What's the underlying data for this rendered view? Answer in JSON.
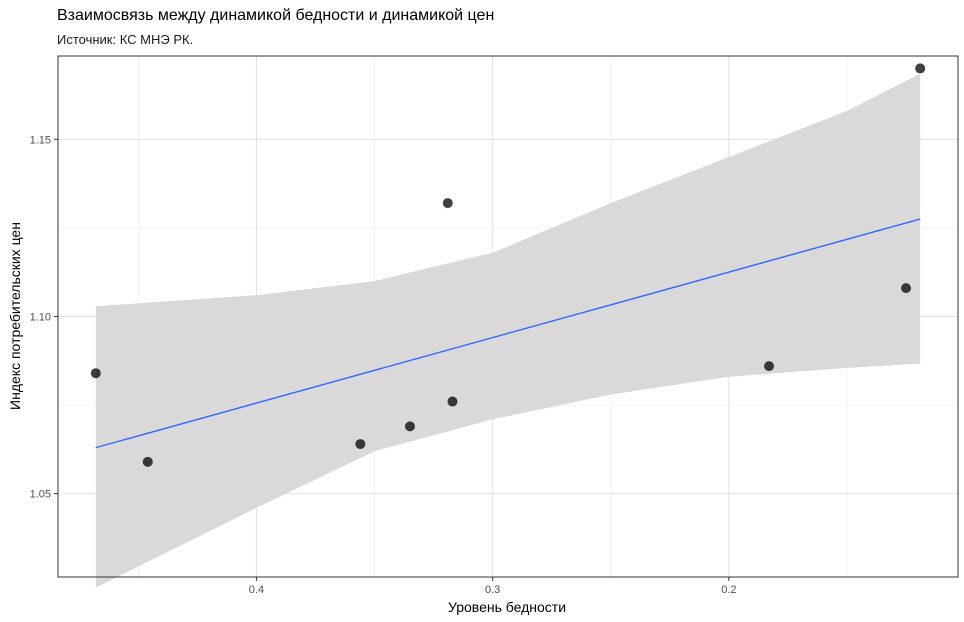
{
  "chart_data": {
    "type": "scatter",
    "title": "Взаимосвязь между динамикой бедности и динамикой цен",
    "subtitle": "Источник: КС МНЭ РК.",
    "xlabel": "Уровень бедности",
    "ylabel": "Индекс потребительских цен",
    "x_reversed": true,
    "xlim": [
      0.484,
      0.103
    ],
    "ylim": [
      1.0265,
      1.1735
    ],
    "x_ticks": [
      0.4,
      0.3,
      0.2
    ],
    "x_tick_labels": [
      "0.4",
      "0.3",
      "0.2"
    ],
    "y_ticks": [
      1.05,
      1.1,
      1.15
    ],
    "y_tick_labels": [
      "1.05",
      "1.10",
      "1.15"
    ],
    "grid": true,
    "points": [
      {
        "x": 0.468,
        "y": 1.084
      },
      {
        "x": 0.446,
        "y": 1.059
      },
      {
        "x": 0.356,
        "y": 1.064
      },
      {
        "x": 0.335,
        "y": 1.069
      },
      {
        "x": 0.319,
        "y": 1.132
      },
      {
        "x": 0.317,
        "y": 1.076
      },
      {
        "x": 0.183,
        "y": 1.086
      },
      {
        "x": 0.125,
        "y": 1.108
      },
      {
        "x": 0.119,
        "y": 1.17
      }
    ],
    "fit": {
      "method": "linear",
      "color": "#3366ff",
      "line": [
        [
          0.468,
          1.063
        ],
        [
          0.119,
          1.1275
        ]
      ],
      "band_color": "#d9d9d9",
      "band": [
        {
          "x": 0.468,
          "lower": 1.0235,
          "upper": 1.1029
        },
        {
          "x": 0.4,
          "lower": 1.046,
          "upper": 1.106
        },
        {
          "x": 0.35,
          "lower": 1.062,
          "upper": 1.11
        },
        {
          "x": 0.3,
          "lower": 1.071,
          "upper": 1.118
        },
        {
          "x": 0.25,
          "lower": 1.078,
          "upper": 1.132
        },
        {
          "x": 0.2,
          "lower": 1.083,
          "upper": 1.145
        },
        {
          "x": 0.15,
          "lower": 1.0855,
          "upper": 1.158
        },
        {
          "x": 0.119,
          "lower": 1.0867,
          "upper": 1.1685
        }
      ]
    }
  }
}
